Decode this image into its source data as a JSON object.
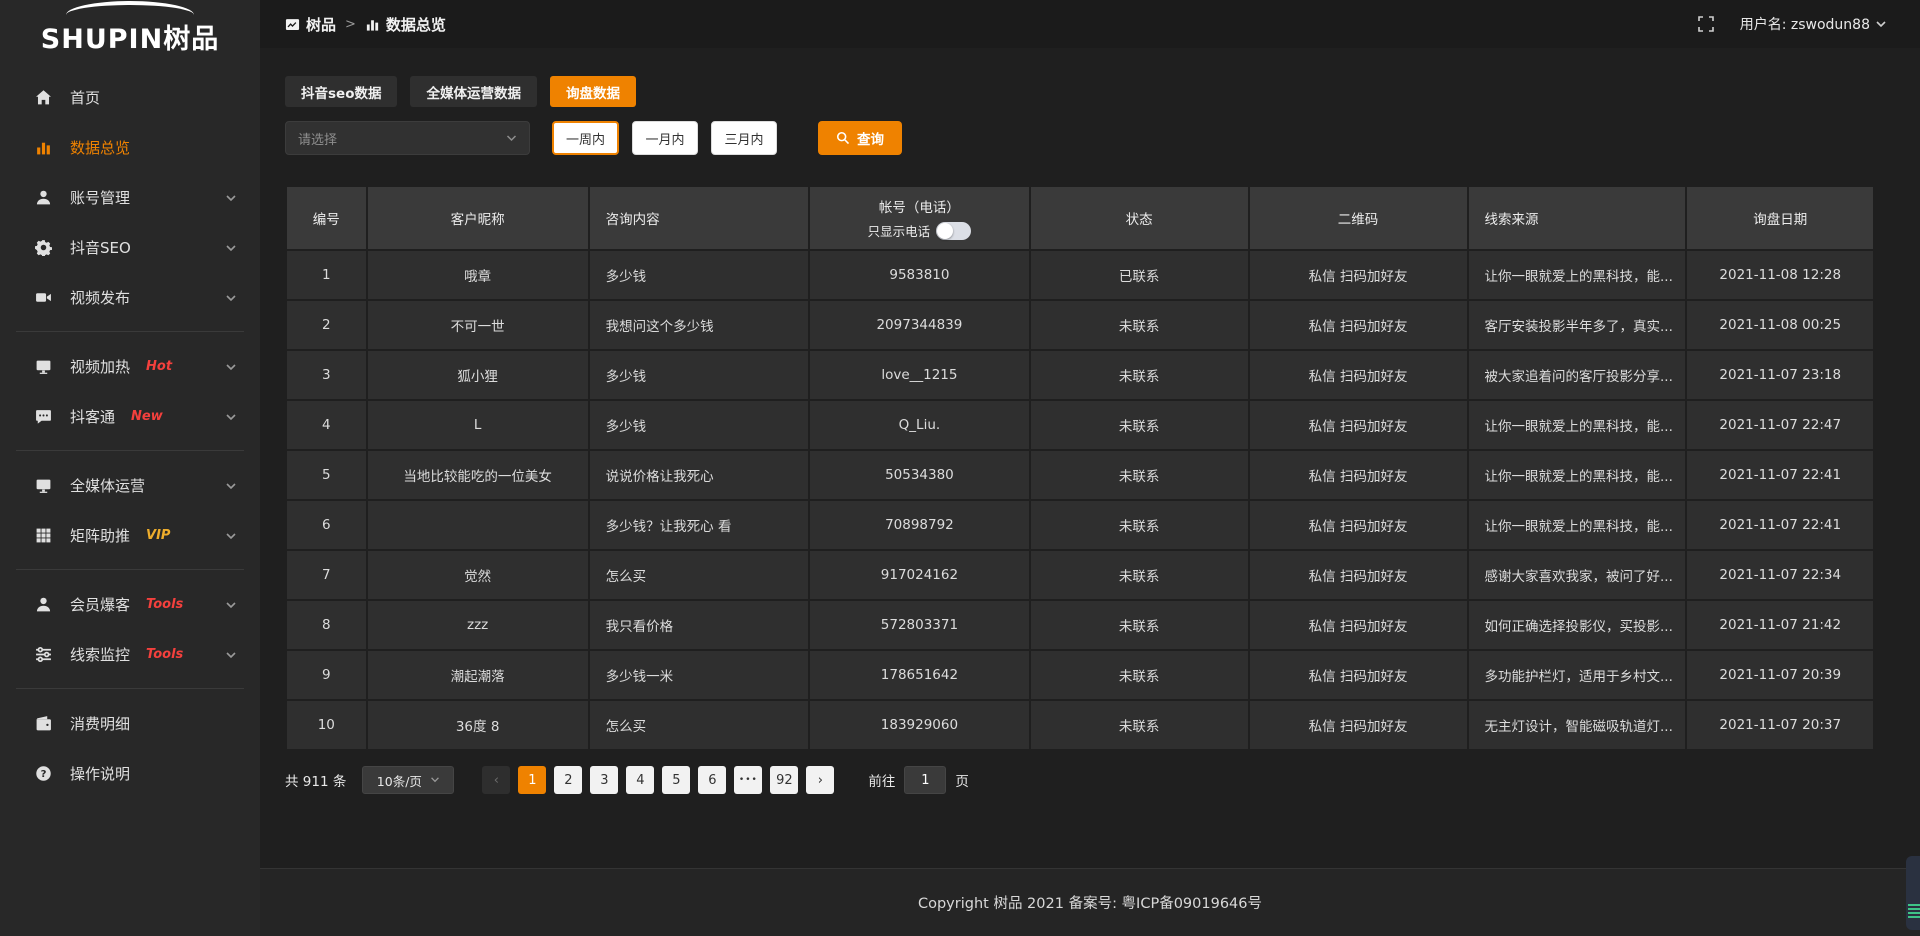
{
  "colors": {
    "accent": "#ef8200",
    "link_orange": "#e2821f",
    "badge_red": "#f4403d",
    "badge_yellow": "#eead2c"
  },
  "logo": {
    "en": "SHUPIN",
    "cn": "树品"
  },
  "header": {
    "breadcrumb": [
      {
        "icon": "image-icon",
        "label": "树品"
      },
      {
        "icon": "bar-chart-icon",
        "label": "数据总览"
      }
    ],
    "separator": ">",
    "username": "用户名: zswodun88"
  },
  "sidebar": {
    "items": [
      {
        "icon": "home-icon",
        "label": "首页"
      },
      {
        "icon": "bar-chart-icon",
        "label": "数据总览",
        "active": true
      },
      {
        "icon": "user-icon",
        "label": "账号管理",
        "chevron": true
      },
      {
        "icon": "gear-icon",
        "label": "抖音SEO",
        "chevron": true
      },
      {
        "icon": "video-camera-icon",
        "label": "视频发布",
        "chevron": true
      },
      {
        "divider": true
      },
      {
        "icon": "monitor-icon",
        "label": "视频加热",
        "badge": "Hot",
        "badge_color": "red",
        "chevron": true
      },
      {
        "icon": "chat-icon",
        "label": "抖客通",
        "badge": "New",
        "badge_color": "red",
        "chevron": true
      },
      {
        "divider": true
      },
      {
        "icon": "monitor-icon",
        "label": "全媒体运营",
        "chevron": true
      },
      {
        "icon": "grid-icon",
        "label": "矩阵助推",
        "badge": "VIP",
        "badge_color": "yellow",
        "chevron": true
      },
      {
        "divider": true
      },
      {
        "icon": "user-icon",
        "label": "会员爆客",
        "badge": "Tools",
        "badge_color": "red",
        "chevron": true
      },
      {
        "icon": "sliders-icon",
        "label": "线索监控",
        "badge": "Tools",
        "badge_color": "red",
        "chevron": true
      },
      {
        "divider": true
      },
      {
        "icon": "wallet-icon",
        "label": "消费明细"
      },
      {
        "icon": "question-icon",
        "label": "操作说明"
      }
    ]
  },
  "tabs": [
    {
      "label": "抖音seo数据",
      "active": false
    },
    {
      "label": "全媒体运营数据",
      "active": false
    },
    {
      "label": "询盘数据",
      "active": true
    }
  ],
  "filters": {
    "select_placeholder": "请选择",
    "range_buttons": [
      {
        "label": "一周内",
        "active": true
      },
      {
        "label": "一月内",
        "active": false
      },
      {
        "label": "三月内",
        "active": false
      }
    ],
    "search_label": "查询"
  },
  "table": {
    "columns": [
      {
        "key": "id",
        "label": "编号"
      },
      {
        "key": "nickname",
        "label": "客户昵称"
      },
      {
        "key": "content",
        "label": "咨询内容",
        "align": "left"
      },
      {
        "key": "account",
        "label": "帐号（电话）",
        "toggle_label": "只显示电话"
      },
      {
        "key": "status",
        "label": "状态"
      },
      {
        "key": "qrcode",
        "label": "二维码"
      },
      {
        "key": "source",
        "label": "线索来源",
        "align": "left"
      },
      {
        "key": "date",
        "label": "询盘日期"
      }
    ],
    "rows": [
      {
        "id": "1",
        "nickname": "哦章",
        "content": "多少钱",
        "account": "9583810",
        "status": "已联系",
        "contacted": true,
        "qrcode": "私信 扫码加好友",
        "source": "让你一眼就爱上的黑科技，能...",
        "date": "2021-11-08 12:28"
      },
      {
        "id": "2",
        "nickname": "不可一世",
        "content": "我想问这个多少钱",
        "account": "2097344839",
        "status": "未联系",
        "contacted": false,
        "qrcode": "私信 扫码加好友",
        "source": "客厅安装投影半年多了，真实...",
        "date": "2021-11-08 00:25"
      },
      {
        "id": "3",
        "nickname": "狐小狸",
        "content": "多少钱",
        "account": "love__1215",
        "status": "未联系",
        "contacted": false,
        "qrcode": "私信 扫码加好友",
        "source": "被大家追着问的客厅投影分享...",
        "date": "2021-11-07 23:18"
      },
      {
        "id": "4",
        "nickname": "L",
        "content": "多少钱",
        "account": "Q_Liu.",
        "status": "未联系",
        "contacted": false,
        "qrcode": "私信 扫码加好友",
        "source": "让你一眼就爱上的黑科技，能...",
        "date": "2021-11-07 22:47"
      },
      {
        "id": "5",
        "nickname": "当地比较能吃的一位美女",
        "content": "说说价格让我死心",
        "account": "50534380",
        "status": "未联系",
        "contacted": false,
        "qrcode": "私信 扫码加好友",
        "source": "让你一眼就爱上的黑科技，能...",
        "date": "2021-11-07 22:41"
      },
      {
        "id": "6",
        "nickname": "",
        "content": "多少钱？让我死心 看",
        "account": "70898792",
        "status": "未联系",
        "contacted": false,
        "qrcode": "私信 扫码加好友",
        "source": "让你一眼就爱上的黑科技，能...",
        "date": "2021-11-07 22:41"
      },
      {
        "id": "7",
        "nickname": "觉然",
        "content": "怎么买",
        "account": "917024162",
        "status": "未联系",
        "contacted": false,
        "qrcode": "私信 扫码加好友",
        "source": "感谢大家喜欢我家，被问了好...",
        "date": "2021-11-07 22:34"
      },
      {
        "id": "8",
        "nickname": "zzz",
        "content": "我只看价格",
        "account": "572803371",
        "status": "未联系",
        "contacted": false,
        "qrcode": "私信 扫码加好友",
        "source": "如何正确选择投影仪，买投影...",
        "date": "2021-11-07 21:42"
      },
      {
        "id": "9",
        "nickname": "潮起潮落",
        "content": "多少钱一米",
        "account": "178651642",
        "status": "未联系",
        "contacted": false,
        "qrcode": "私信 扫码加好友",
        "source": "多功能护栏灯，适用于乡村文...",
        "date": "2021-11-07 20:39"
      },
      {
        "id": "10",
        "nickname": "36度 8",
        "content": "怎么买",
        "account": "183929060",
        "status": "未联系",
        "contacted": false,
        "qrcode": "私信 扫码加好友",
        "source": "无主灯设计，智能磁吸轨道灯...",
        "date": "2021-11-07 20:37"
      }
    ]
  },
  "pagination": {
    "total": "共 911 条",
    "page_size": "10条/页",
    "pages": [
      "1",
      "2",
      "3",
      "4",
      "5",
      "6",
      "•••",
      "92"
    ],
    "active_page": "1",
    "goto_label": "前往",
    "goto_value": "1",
    "page_unit": "页"
  },
  "footer": {
    "copyright": "Copyright 树品 2021 备案号: 粤ICP备09019646号"
  }
}
